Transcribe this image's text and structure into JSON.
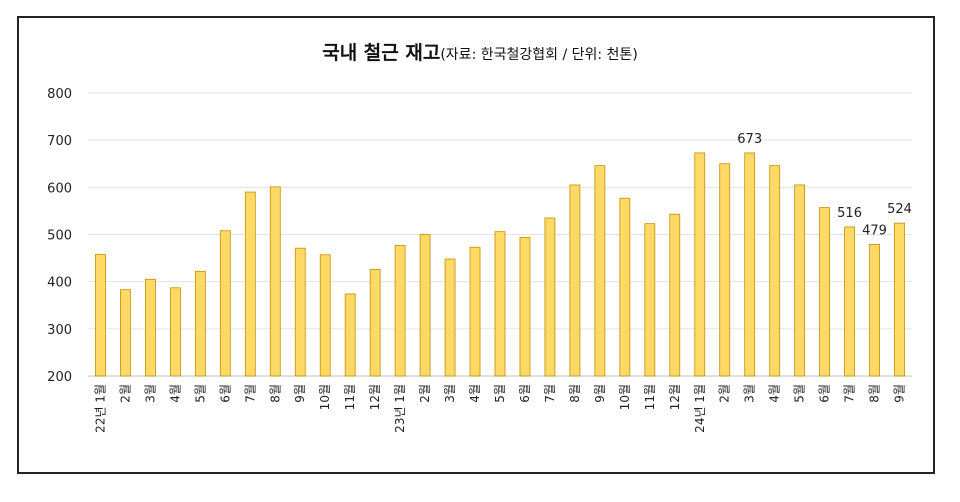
{
  "chart_data": {
    "type": "bar",
    "title": "국내 철근 재고",
    "subtitle": "(자료: 한국철강협회 / 단위: 천톤)",
    "ylim": [
      200,
      800
    ],
    "yticks": [
      200,
      300,
      400,
      500,
      600,
      700,
      800
    ],
    "grid": true,
    "bar_color": "#FFD966",
    "bar_edge_color": "#BF9000",
    "categories": [
      "22년 1월",
      "2월",
      "3월",
      "4월",
      "5월",
      "6월",
      "7월",
      "8월",
      "9월",
      "10월",
      "11월",
      "12월",
      "23년 1월",
      "2월",
      "3월",
      "4월",
      "5월",
      "6월",
      "7월",
      "8월",
      "9월",
      "10월",
      "11월",
      "12월",
      "24년 1월",
      "2월",
      "3월",
      "4월",
      "5월",
      "6월",
      "7월",
      "8월",
      "9월"
    ],
    "values": [
      458,
      383,
      405,
      387,
      422,
      508,
      590,
      601,
      471,
      457,
      374,
      426,
      477,
      500,
      448,
      473,
      506,
      494,
      535,
      605,
      646,
      577,
      523,
      543,
      673,
      650,
      673,
      646,
      605,
      557,
      516,
      479,
      524
    ],
    "data_labels": [
      {
        "index": 26,
        "text": "673"
      },
      {
        "index": 30,
        "text": "516"
      },
      {
        "index": 31,
        "text": "479"
      },
      {
        "index": 32,
        "text": "524"
      }
    ]
  }
}
